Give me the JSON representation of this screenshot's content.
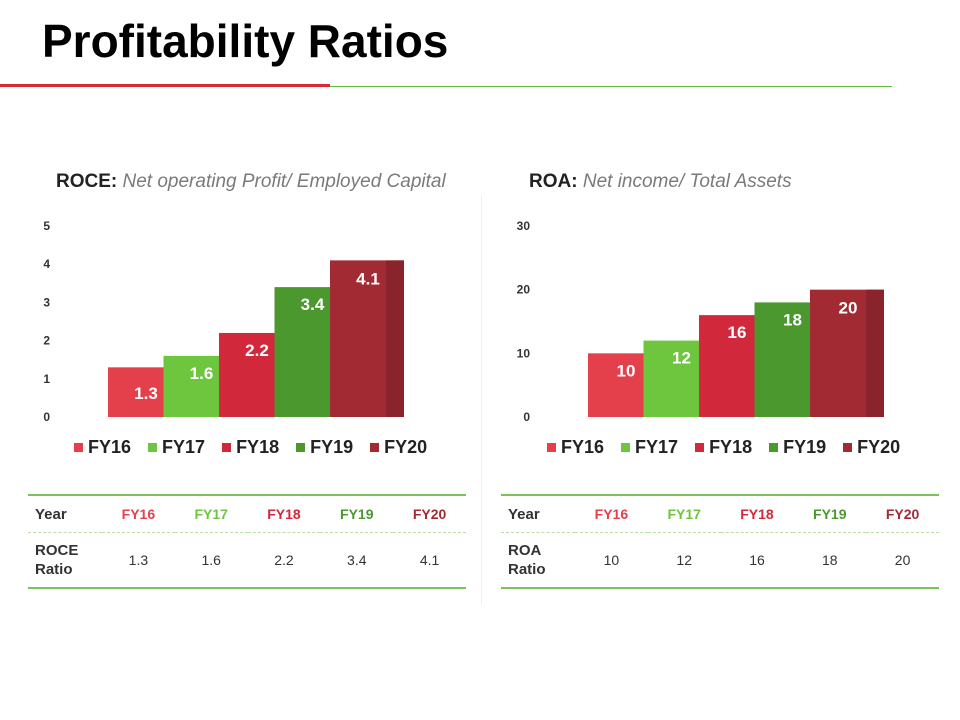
{
  "page": {
    "title": "Profitability Ratios"
  },
  "colors": {
    "accent_red": "#d92a37",
    "accent_green": "#63b943",
    "year_colors": [
      "#e4404c",
      "#6ec63f",
      "#d1293b",
      "#4b982f",
      "#a12a33"
    ]
  },
  "legend": {
    "labels": [
      "FY16",
      "FY17",
      "FY18",
      "FY19",
      "FY20"
    ]
  },
  "roce": {
    "label": "ROCE:",
    "formula": "Net operating Profit/ Employed Capital",
    "table": {
      "year_label": "Year",
      "ratio_label": "ROCE Ratio",
      "years": [
        "FY16",
        "FY17",
        "FY18",
        "FY19",
        "FY20"
      ],
      "values": [
        "1.3",
        "1.6",
        "2.2",
        "3.4",
        "4.1"
      ]
    }
  },
  "roa": {
    "label": "ROA:",
    "formula": "Net income/ Total Assets",
    "table": {
      "year_label": "Year",
      "ratio_label": "ROA Ratio",
      "years": [
        "FY16",
        "FY17",
        "FY18",
        "FY19",
        "FY20"
      ],
      "values": [
        "10",
        "12",
        "16",
        "18",
        "20"
      ]
    }
  },
  "chart_data": [
    {
      "type": "bar",
      "title": "ROCE: Net operating Profit/ Employed Capital",
      "categories": [
        "FY16",
        "FY17",
        "FY18",
        "FY19",
        "FY20"
      ],
      "values": [
        1.3,
        1.6,
        2.2,
        3.4,
        4.1
      ],
      "ylim": [
        0,
        5
      ],
      "yticks": [
        0,
        1,
        2,
        3,
        4,
        5
      ],
      "xlabel": "",
      "ylabel": "",
      "grid": false,
      "legend": "bottom"
    },
    {
      "type": "bar",
      "title": "ROA: Net income/ Total Assets",
      "categories": [
        "FY16",
        "FY17",
        "FY18",
        "FY19",
        "FY20"
      ],
      "values": [
        10,
        12,
        16,
        18,
        20
      ],
      "ylim": [
        0,
        30
      ],
      "yticks": [
        0,
        10,
        20,
        30
      ],
      "xlabel": "",
      "ylabel": "",
      "grid": false,
      "legend": "bottom"
    }
  ]
}
